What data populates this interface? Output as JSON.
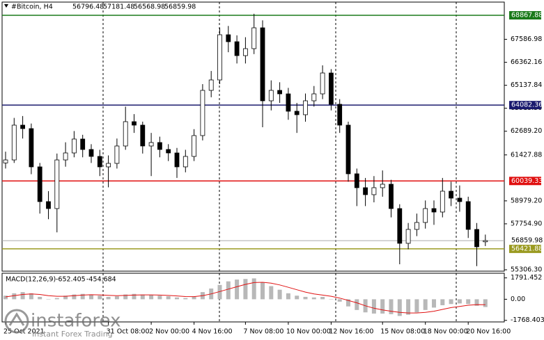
{
  "chart_data": [
    {
      "type": "candlestick",
      "title": "#Bitcoin, H4",
      "ylim": [
        55232,
        69572
      ],
      "yticks": [
        67586.98,
        66362.16,
        65137.84,
        {
          "value": 63913.5,
          "label": "63913.50"
        },
        {
          "value": 62689.2,
          "label": "62689.20"
        },
        61427.88,
        {
          "value": 58979.2,
          "label": "58979.20"
        },
        {
          "value": 57754.9,
          "label": "57754.90"
        },
        {
          "value": 55306.3,
          "label": "55306.30"
        }
      ],
      "categories": [
        "25 Oct 2021",
        null,
        null,
        null,
        null,
        null,
        null,
        null,
        null,
        null,
        null,
        null,
        "31 Oct 08:00",
        null,
        null,
        null,
        null,
        "2 Nov 00:00",
        null,
        null,
        null,
        null,
        "4 Nov 16:00",
        null,
        null,
        null,
        null,
        null,
        "7 Nov 08:00",
        null,
        null,
        null,
        null,
        "10 Nov 00:00",
        null,
        null,
        null,
        null,
        "12 Nov 16:00",
        null,
        null,
        null,
        null,
        null,
        "15 Nov 08:00",
        null,
        null,
        null,
        null,
        "18 Nov 00:00",
        null,
        null,
        null,
        null,
        "20 Nov 16:00",
        null,
        null
      ],
      "open": [
        61000,
        61160,
        63014,
        62829,
        60791,
        58939,
        58568,
        61160,
        61532,
        62273,
        61717,
        61347,
        60791,
        60976,
        61903,
        63199,
        63014,
        61903,
        62088,
        61717,
        61532,
        60791,
        61347,
        62458,
        64867,
        65422,
        67831,
        67460,
        66719,
        67090,
        68201,
        64311,
        64867,
        64681,
        63755,
        63570,
        64311,
        64681,
        65793,
        64126,
        63014,
        60421,
        59680,
        59309,
        59680,
        59865,
        58568,
        56716,
        57457,
        57827,
        58568,
        58383,
        59494,
        59124,
        58939,
        57457,
        56796.48
      ],
      "high": [
        61600,
        63400,
        63500,
        63100,
        61000,
        59500,
        61500,
        62100,
        62700,
        62500,
        62000,
        61700,
        61400,
        62300,
        64000,
        63600,
        63200,
        62600,
        62400,
        62000,
        61800,
        61700,
        62800,
        65200,
        65900,
        68200,
        68300,
        67800,
        67700,
        68950,
        68600,
        65400,
        65300,
        65000,
        64200,
        64700,
        65100,
        66200,
        66000,
        64400,
        63200,
        60700,
        60200,
        60300,
        60600,
        60100,
        58800,
        57800,
        58300,
        59000,
        59000,
        60200,
        60000,
        59800,
        59200,
        57800,
        57181.48
      ],
      "low": [
        60700,
        61000,
        62300,
        60400,
        58300,
        58000,
        57300,
        60800,
        61300,
        61300,
        61000,
        60300,
        59700,
        60700,
        61700,
        62600,
        61500,
        60300,
        61300,
        61100,
        60200,
        60500,
        61100,
        62200,
        64500,
        65200,
        66900,
        66300,
        66300,
        66800,
        62900,
        63800,
        64200,
        63300,
        62600,
        63200,
        64000,
        64400,
        63800,
        62600,
        60000,
        58700,
        58700,
        58900,
        59200,
        58100,
        55600,
        56400,
        57100,
        57500,
        57700,
        58100,
        58700,
        58400,
        57000,
        55500,
        56568.98
      ],
      "close": [
        61160,
        63014,
        62829,
        60791,
        58939,
        58568,
        61160,
        61532,
        62273,
        61717,
        61347,
        60791,
        60976,
        61903,
        63199,
        63014,
        61903,
        62088,
        61717,
        61532,
        60791,
        61347,
        62458,
        64867,
        65422,
        67831,
        67460,
        66719,
        67090,
        68201,
        64311,
        64867,
        64681,
        63755,
        63570,
        64311,
        64681,
        65793,
        64126,
        63014,
        60421,
        59680,
        59309,
        59680,
        59865,
        58568,
        56716,
        57457,
        57827,
        58568,
        58383,
        59494,
        59124,
        58939,
        57457,
        56530,
        56859.98
      ],
      "levels": [
        {
          "value": 68867.88,
          "color": "#1a7a1a"
        },
        {
          "value": 64082.36,
          "color": "#1a1a6e"
        },
        {
          "value": 60039.33,
          "color": "#e01010"
        },
        {
          "value": 56421.88,
          "color": "#9a9a20"
        }
      ],
      "watermark": {
        "brand": "instaforex",
        "tagline": "Instant Forex Trading"
      }
    },
    {
      "type": "macd",
      "title": "MACD(12,26,9)",
      "ylim": [
        -1900,
        2180
      ],
      "yticks": [
        1791.452,
        {
          "value": 0,
          "label": "0.00"
        },
        -1768.403
      ],
      "series": [
        {
          "name": "MACD",
          "color": "#b8b8b8",
          "values": [
            300,
            500,
            600,
            500,
            200,
            0,
            100,
            300,
            400,
            450,
            400,
            300,
            200,
            250,
            400,
            450,
            400,
            350,
            300,
            250,
            150,
            100,
            200,
            600,
            900,
            1200,
            1500,
            1650,
            1700,
            1750,
            1400,
            1100,
            800,
            500,
            300,
            200,
            150,
            200,
            0,
            -200,
            -600,
            -900,
            -1100,
            -1200,
            -1200,
            -1250,
            -1400,
            -1300,
            -1100,
            -900,
            -700,
            -500,
            -400,
            -350,
            -400,
            -550,
            -652.405
          ]
        },
        {
          "name": "Signal",
          "color": "#e01010",
          "values": [
            200,
            300,
            400,
            450,
            400,
            300,
            250,
            250,
            300,
            350,
            380,
            370,
            330,
            300,
            320,
            350,
            370,
            370,
            350,
            320,
            280,
            230,
            220,
            300,
            450,
            650,
            850,
            1050,
            1250,
            1400,
            1420,
            1350,
            1200,
            1000,
            800,
            600,
            450,
            350,
            250,
            100,
            -100,
            -300,
            -550,
            -750,
            -900,
            -1000,
            -1100,
            -1150,
            -1150,
            -1100,
            -1000,
            -850,
            -700,
            -600,
            -500,
            -450,
            -454.684
          ]
        }
      ]
    }
  ]
}
